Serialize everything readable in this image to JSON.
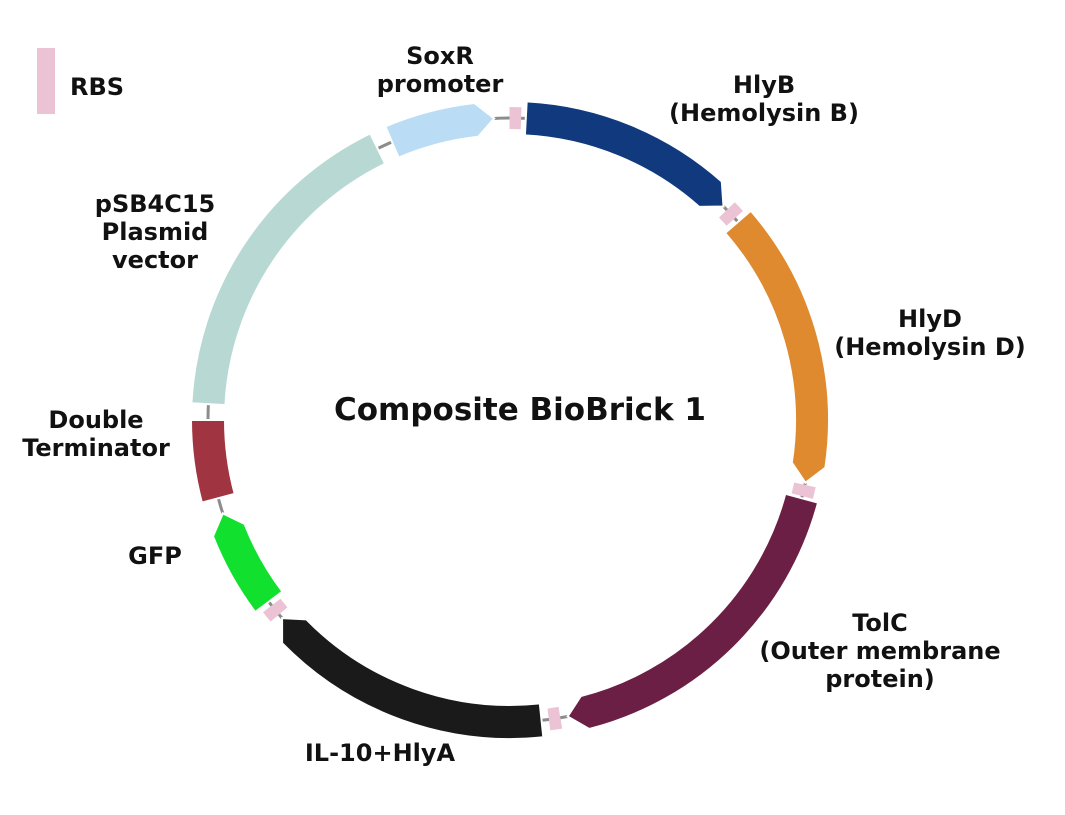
{
  "title": "Composite BioBrick 1",
  "legend": {
    "label": "RBS",
    "color": "#EBC3D4"
  },
  "backbone_color": "#8C8C8C",
  "parts": [
    {
      "id": "soxr",
      "label": [
        "SoxR",
        "promoter"
      ],
      "color": "#BADDF5",
      "arrow": true
    },
    {
      "id": "hlyb",
      "label": [
        "HlyB",
        "(Hemolysin B)"
      ],
      "color": "#10397E",
      "arrow": true
    },
    {
      "id": "hlyd",
      "label": [
        "HlyD",
        "(Hemolysin D)"
      ],
      "color": "#E08A30",
      "arrow": true
    },
    {
      "id": "tolc",
      "label": [
        "TolC",
        "(Outer membrane",
        "protein)"
      ],
      "color": "#6C1F44",
      "arrow": true
    },
    {
      "id": "il10",
      "label": [
        "IL-10+HlyA"
      ],
      "color": "#1A1A1A",
      "arrow": true
    },
    {
      "id": "gfp",
      "label": [
        "GFP"
      ],
      "color": "#12E02F",
      "arrow": true
    },
    {
      "id": "term",
      "label": [
        "Double",
        "Terminator"
      ],
      "color": "#A03440",
      "arrow": false
    },
    {
      "id": "psb",
      "label": [
        "pSB4C15",
        "Plasmid",
        "vector"
      ],
      "color": "#B8D9D3",
      "arrow": false
    }
  ]
}
